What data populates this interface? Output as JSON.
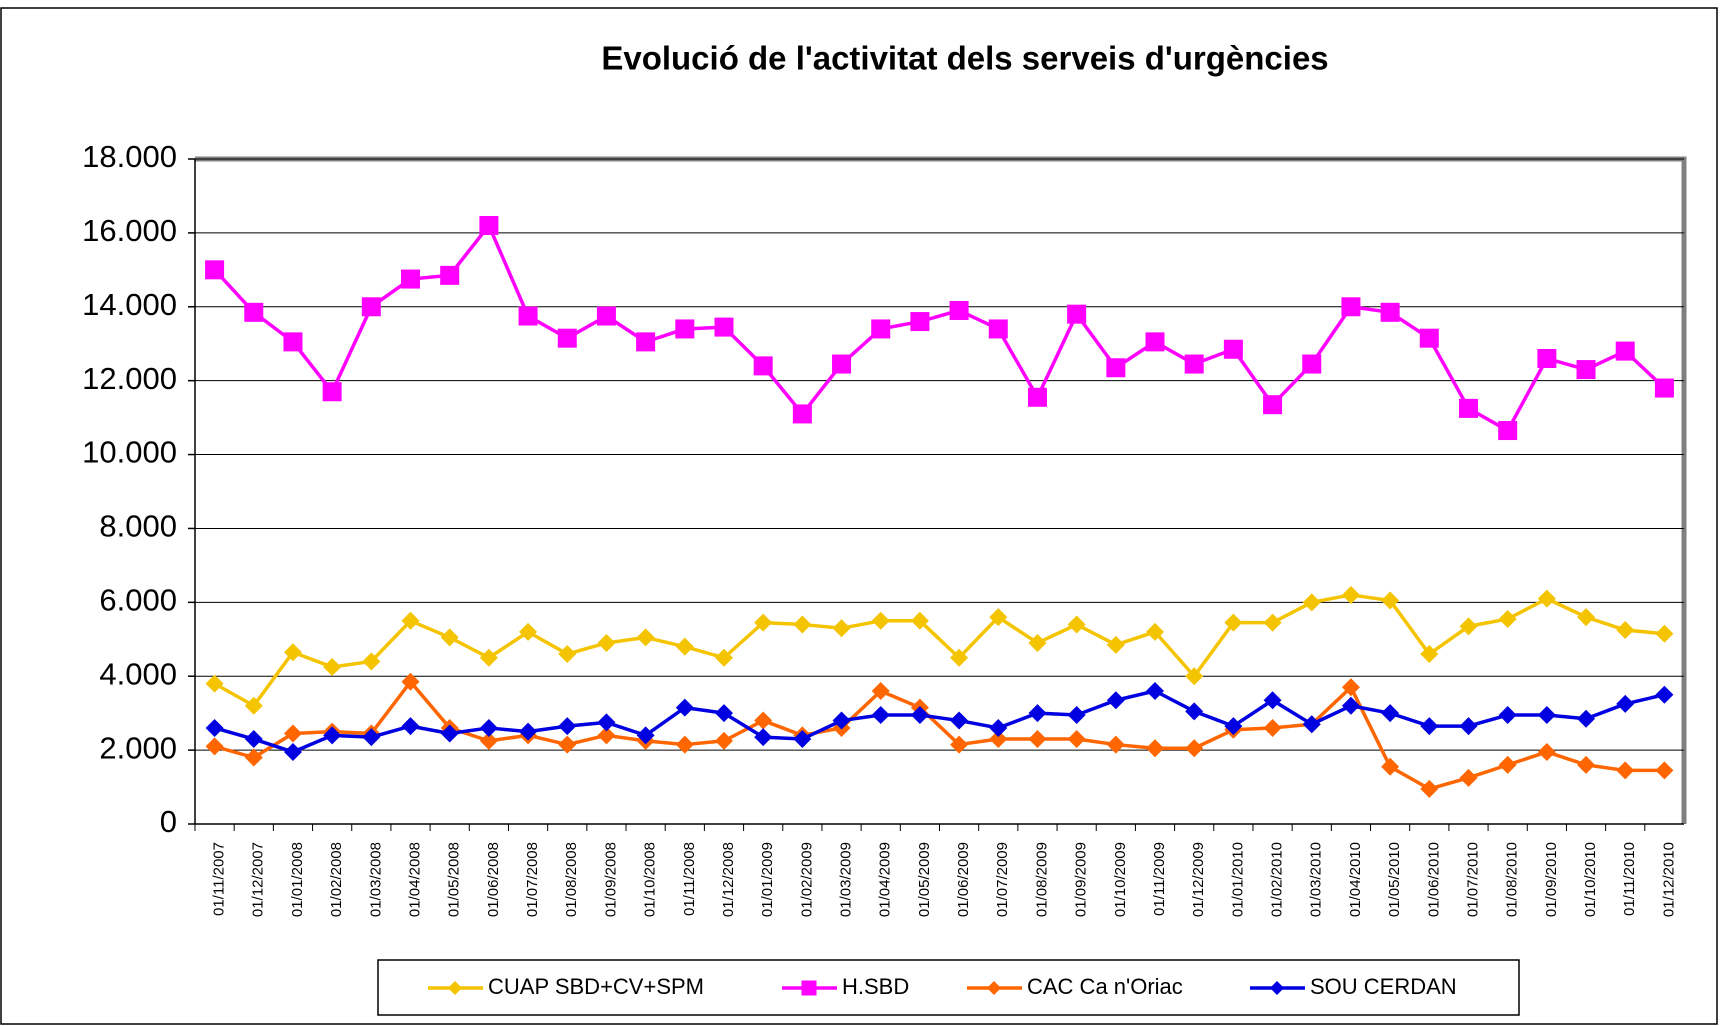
{
  "chart_data": {
    "type": "line",
    "title": "Evolució de l'activitat dels serveis d'urgències",
    "categories": [
      "01/11/2007",
      "01/12/2007",
      "01/01/2008",
      "01/02/2008",
      "01/03/2008",
      "01/04/2008",
      "01/05/2008",
      "01/06/2008",
      "01/07/2008",
      "01/08/2008",
      "01/09/2008",
      "01/10/2008",
      "01/11/2008",
      "01/12/2008",
      "01/01/2009",
      "01/02/2009",
      "01/03/2009",
      "01/04/2009",
      "01/05/2009",
      "01/06/2009",
      "01/07/2009",
      "01/08/2009",
      "01/09/2009",
      "01/10/2009",
      "01/11/2009",
      "01/12/2009",
      "01/01/2010",
      "01/02/2010",
      "01/03/2010",
      "01/04/2010",
      "01/05/2010",
      "01/06/2010",
      "01/07/2010",
      "01/08/2010",
      "01/09/2010",
      "01/10/2010",
      "01/11/2010",
      "01/12/2010"
    ],
    "series": [
      {
        "name": "CUAP SBD+CV+SPM",
        "color": "#f5c400",
        "marker": "diamond",
        "values": [
          3800,
          3200,
          4650,
          4250,
          4400,
          5500,
          5050,
          4500,
          5200,
          4600,
          4900,
          5050,
          4800,
          4500,
          5450,
          5400,
          5300,
          5500,
          5500,
          4500,
          5600,
          4900,
          5400,
          4850,
          5200,
          4000,
          5450,
          5450,
          6000,
          6200,
          6050,
          4600,
          5350,
          5550,
          6100,
          5600,
          5250,
          5150
        ]
      },
      {
        "name": "H.SBD",
        "color": "#ff00ff",
        "marker": "square",
        "values": [
          15000,
          13850,
          13050,
          11700,
          14000,
          14750,
          14850,
          16200,
          13750,
          13150,
          13750,
          13050,
          13400,
          13450,
          12400,
          11100,
          12450,
          13400,
          13600,
          13900,
          13400,
          11550,
          13800,
          12350,
          13050,
          12450,
          12850,
          11350,
          12450,
          14000,
          13850,
          13150,
          11250,
          10650,
          12600,
          12300,
          12800,
          11800
        ]
      },
      {
        "name": "CAC Ca n'Oriac",
        "color": "#ff6600",
        "marker": "diamond",
        "values": [
          2100,
          1800,
          2450,
          2500,
          2450,
          3850,
          2600,
          2250,
          2400,
          2150,
          2400,
          2250,
          2150,
          2250,
          2800,
          2400,
          2600,
          3600,
          3150,
          2150,
          2300,
          2300,
          2300,
          2150,
          2050,
          2050,
          2550,
          2600,
          2700,
          3700,
          1550,
          950,
          1250,
          1600,
          1950,
          1600,
          1450,
          1450
        ]
      },
      {
        "name": "SOU CERDAN",
        "color": "#0000e0",
        "marker": "diamond",
        "values": [
          2600,
          2300,
          1950,
          2400,
          2350,
          2650,
          2450,
          2600,
          2500,
          2650,
          2750,
          2400,
          3150,
          3000,
          2350,
          2300,
          2800,
          2950,
          2950,
          2800,
          2600,
          3000,
          2950,
          3350,
          3600,
          3050,
          2650,
          3350,
          2700,
          3200,
          3000,
          2650,
          2650,
          2950,
          2950,
          2850,
          3250,
          3500
        ]
      }
    ],
    "ylim": [
      0,
      18000
    ],
    "yticks": [
      0,
      {
        "value": 2000,
        "label": "2.000"
      },
      {
        "value": 4000,
        "label": "4.000"
      },
      {
        "value": 6000,
        "label": "6.000"
      },
      {
        "value": 8000,
        "label": "8.000"
      },
      {
        "value": 10000,
        "label": "10.000"
      },
      {
        "value": 12000,
        "label": "12.000"
      },
      {
        "value": 14000,
        "label": "14.000"
      },
      {
        "value": 16000,
        "label": "16.000"
      },
      {
        "value": 18000,
        "label": "18.000"
      }
    ],
    "grid": true,
    "legend": "bottom"
  }
}
